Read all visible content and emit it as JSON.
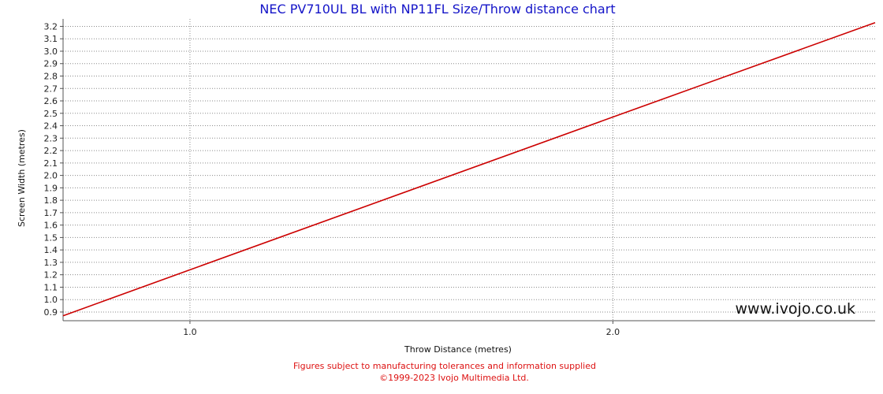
{
  "chart_data": {
    "type": "line",
    "title": "NEC PV710UL BL with NP11FL Size/Throw distance chart",
    "xlabel": "Throw Distance (metres)",
    "ylabel": "Screen Width (metres)",
    "xlim": [
      0.7,
      2.62
    ],
    "ylim": [
      0.83,
      3.26
    ],
    "x_ticks": [
      "1.0",
      "2.0"
    ],
    "x_tick_values": [
      1.0,
      2.0
    ],
    "y_ticks": [
      "0.9",
      "1.0",
      "1.1",
      "1.2",
      "1.3",
      "1.4",
      "1.5",
      "1.6",
      "1.7",
      "1.8",
      "1.9",
      "2.0",
      "2.1",
      "2.2",
      "2.3",
      "2.4",
      "2.5",
      "2.6",
      "2.7",
      "2.8",
      "2.9",
      "3.0",
      "3.1",
      "3.2"
    ],
    "y_tick_values": [
      0.9,
      1.0,
      1.1,
      1.2,
      1.3,
      1.4,
      1.5,
      1.6,
      1.7,
      1.8,
      1.9,
      2.0,
      2.1,
      2.2,
      2.3,
      2.4,
      2.5,
      2.6,
      2.7,
      2.8,
      2.9,
      3.0,
      3.1,
      3.2
    ],
    "grid": true,
    "series": [
      {
        "color": "#cc0000",
        "x": [
          0.7,
          1.0,
          2.0,
          2.62
        ],
        "y": [
          0.87,
          1.24,
          2.47,
          3.23
        ]
      }
    ]
  },
  "watermark": "www.ivojo.co.uk",
  "footer": {
    "line1": "Figures subject to manufacturing tolerances and information supplied",
    "line2": "©1999-2023 Ivojo Multimedia Ltd."
  }
}
